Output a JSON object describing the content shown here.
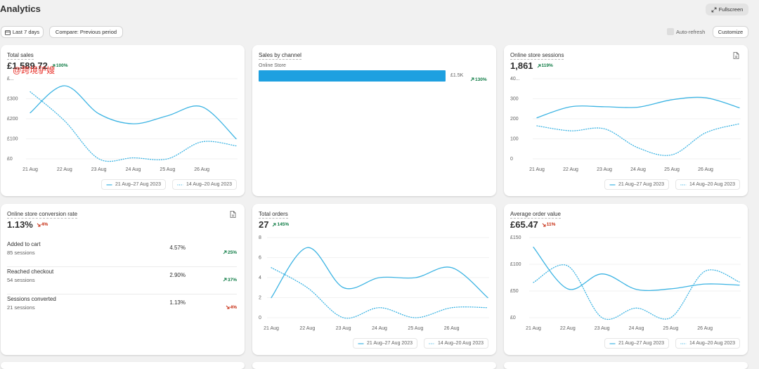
{
  "header": {
    "title": "Analytics",
    "fullscreen": "Fullscreen"
  },
  "toolbar": {
    "date_range": "Last 7 days",
    "compare": "Compare: Previous period",
    "auto_refresh": "Auto-refresh",
    "customize": "Customize"
  },
  "watermark": "@跨境驴嫂",
  "cards": [
    {
      "title": "Total sales",
      "value": "£1,589.72",
      "change": {
        "text": "100%",
        "trend": "up"
      },
      "chart": {
        "type": "line",
        "categories": [
          "21 Aug",
          "22 Aug",
          "23 Aug",
          "24 Aug",
          "25 Aug",
          "26 Aug",
          null
        ],
        "ylim": [
          0,
          400
        ],
        "yticks": [
          {
            "value": 0,
            "label": "£0"
          },
          {
            "value": 100,
            "label": "£100"
          },
          {
            "value": 200,
            "label": "£200"
          },
          {
            "value": 300,
            "label": "£300"
          },
          {
            "value": 400,
            "label": "£..."
          }
        ],
        "grid": true,
        "series": [
          {
            "name": "21 Aug–27 Aug 2023",
            "color": "#3db4e3",
            "dashed": false,
            "values": [
              230,
              365,
              225,
              175,
              215,
              260,
              100
            ]
          },
          {
            "name": "14 Aug–20 Aug 2023",
            "color": "#3db4e3",
            "dashed": true,
            "values": [
              335,
              190,
              0,
              5,
              0,
              85,
              65
            ]
          }
        ]
      }
    },
    {
      "title": "Sales by channel",
      "chart": {
        "type": "bar",
        "categories": [
          "Online Store"
        ],
        "values": [
          1500
        ],
        "value_labels": [
          "£1.5K"
        ],
        "changes": [
          {
            "text": "130%",
            "trend": "up"
          }
        ],
        "color": "#1ea0e0"
      }
    },
    {
      "title": "Online store sessions",
      "value": "1,861",
      "change": {
        "text": "119%",
        "trend": "up"
      },
      "icon": true,
      "chart": {
        "type": "line",
        "categories": [
          "21 Aug",
          "22 Aug",
          "23 Aug",
          "24 Aug",
          "25 Aug",
          "26 Aug",
          null
        ],
        "ylim": [
          0,
          400
        ],
        "yticks": [
          0,
          100,
          200,
          300,
          {
            "value": 400,
            "label": "40..."
          }
        ],
        "grid": true,
        "series": [
          {
            "name": "21 Aug–27 Aug 2023",
            "color": "#3db4e3",
            "dashed": false,
            "values": [
              205,
              260,
              260,
              258,
              295,
              305,
              255
            ]
          },
          {
            "name": "14 Aug–20 Aug 2023",
            "color": "#3db4e3",
            "dashed": true,
            "values": [
              165,
              140,
              150,
              55,
              20,
              130,
              175
            ]
          }
        ]
      }
    },
    {
      "title": "Online store conversion rate",
      "value": "1.13%",
      "change": {
        "text": "4%",
        "trend": "down"
      },
      "icon": true,
      "breakdown": [
        {
          "label": "Added to cart",
          "sub": "85 sessions",
          "value": "4.57%",
          "change": {
            "text": "25%",
            "trend": "up"
          }
        },
        {
          "label": "Reached checkout",
          "sub": "54 sessions",
          "value": "2.90%",
          "change": {
            "text": "37%",
            "trend": "up"
          }
        },
        {
          "label": "Sessions converted",
          "sub": "21 sessions",
          "value": "1.13%",
          "change": {
            "text": "4%",
            "trend": "down"
          }
        }
      ]
    },
    {
      "title": "Total orders",
      "value": "27",
      "change": {
        "text": "145%",
        "trend": "up"
      },
      "chart": {
        "type": "line",
        "categories": [
          "21 Aug",
          "22 Aug",
          "23 Aug",
          "24 Aug",
          "25 Aug",
          "26 Aug",
          null
        ],
        "ylim": [
          0,
          8
        ],
        "yticks": [
          0,
          2,
          4,
          6,
          8
        ],
        "grid": true,
        "series": [
          {
            "name": "21 Aug–27 Aug 2023",
            "color": "#3db4e3",
            "dashed": false,
            "values": [
              2,
              7,
              3,
              4,
              4,
              5,
              2
            ]
          },
          {
            "name": "14 Aug–20 Aug 2023",
            "color": "#3db4e3",
            "dashed": true,
            "values": [
              5,
              3,
              0,
              1,
              0,
              1,
              1
            ]
          }
        ]
      }
    },
    {
      "title": "Average order value",
      "value": "£65.47",
      "change": {
        "text": "11%",
        "trend": "down"
      },
      "chart": {
        "type": "line",
        "categories": [
          "21 Aug",
          "22 Aug",
          "23 Aug",
          "24 Aug",
          "25 Aug",
          "26 Aug",
          null
        ],
        "ylim": [
          0,
          150
        ],
        "yticks": [
          {
            "value": 0,
            "label": "£0"
          },
          {
            "value": 50,
            "label": "£50"
          },
          {
            "value": 100,
            "label": "£100"
          },
          {
            "value": 150,
            "label": "£150"
          }
        ],
        "grid": true,
        "series": [
          {
            "name": "21 Aug–27 Aug 2023",
            "color": "#3db4e3",
            "dashed": false,
            "values": [
              132,
              54,
              82,
              53,
              54,
              63,
              61
            ]
          },
          {
            "name": "14 Aug–20 Aug 2023",
            "color": "#3db4e3",
            "dashed": true,
            "values": [
              66,
              97,
              0,
              18,
              0,
              87,
              67
            ]
          }
        ]
      }
    }
  ]
}
